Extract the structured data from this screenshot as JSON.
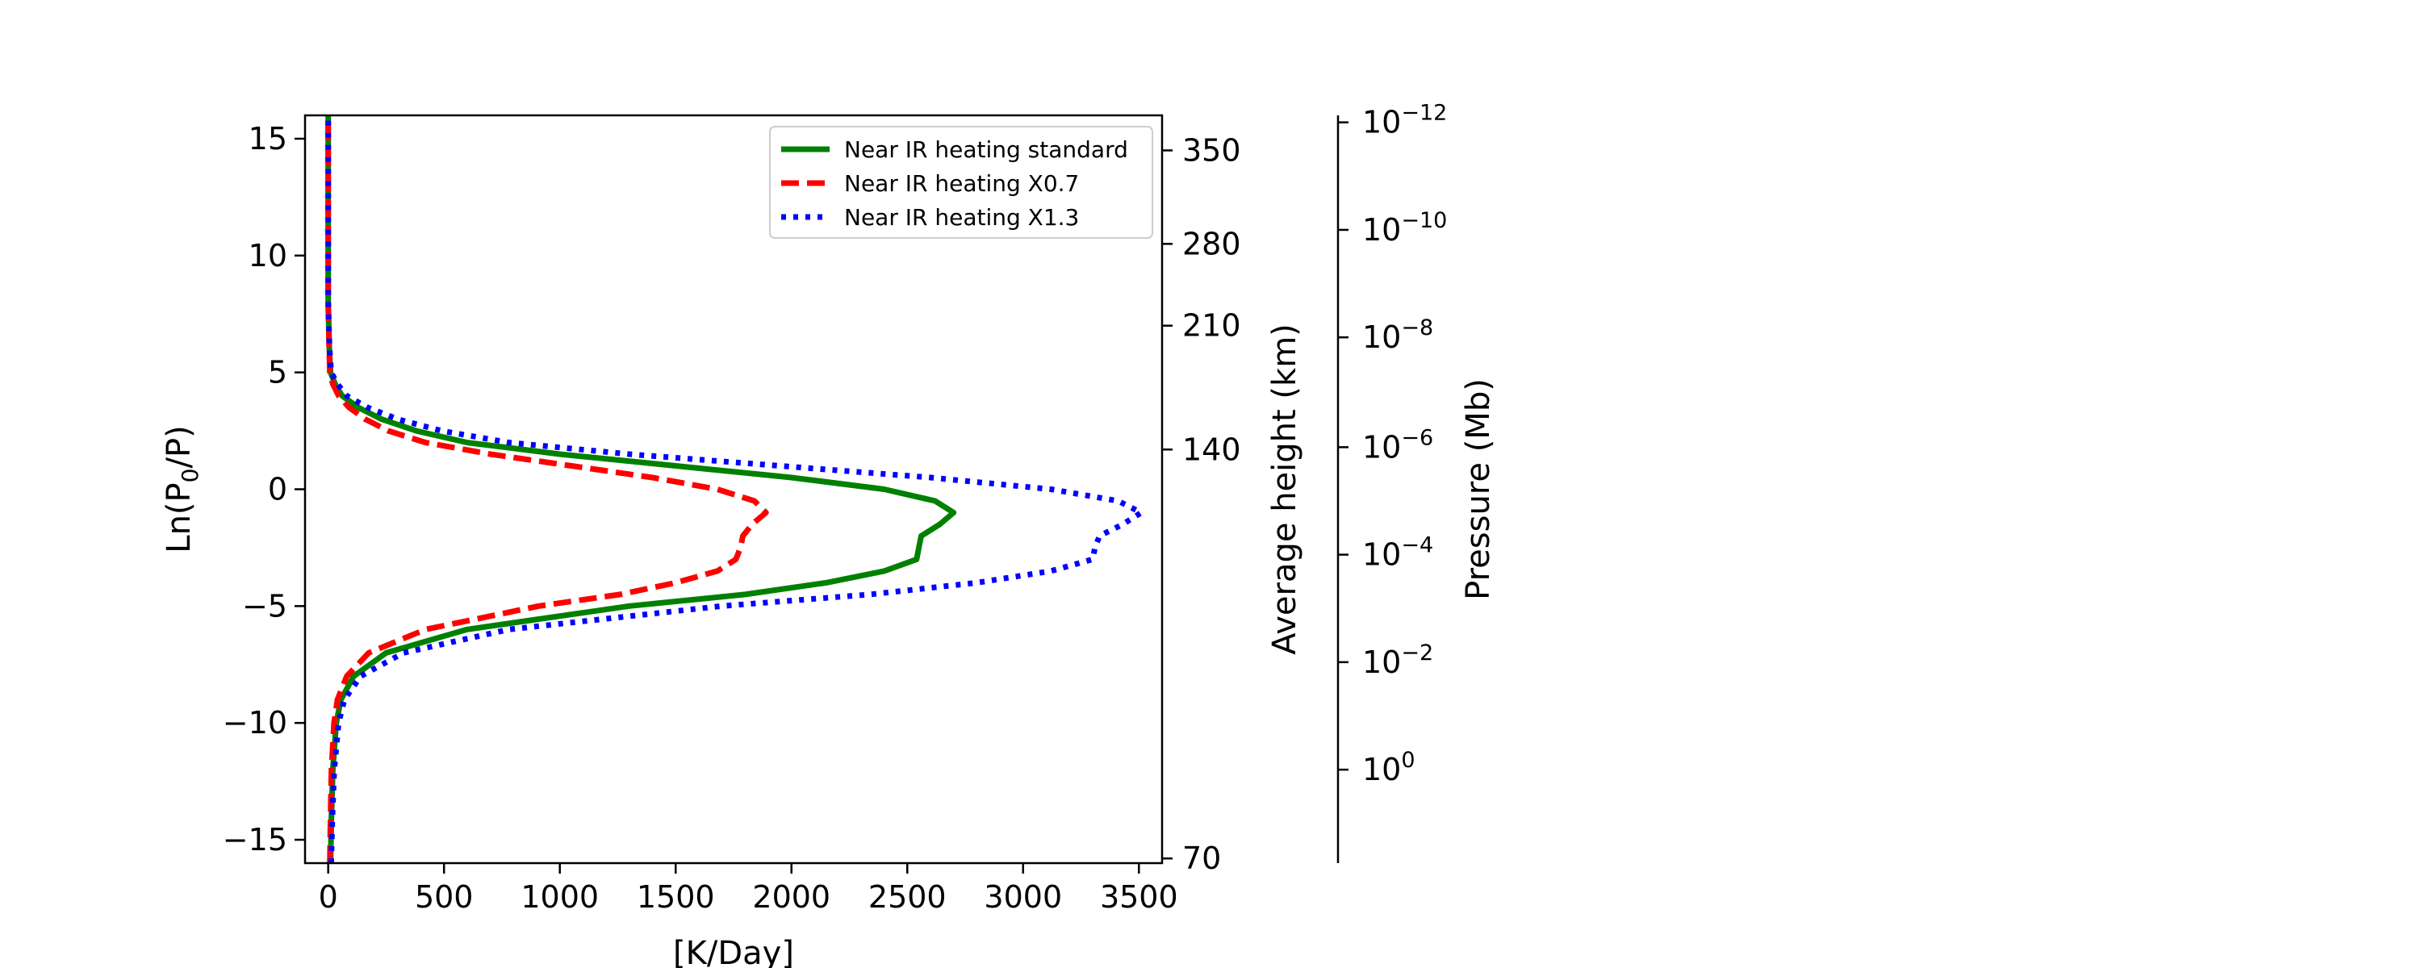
{
  "chart_data": {
    "type": "line",
    "title": "",
    "xlabel": "[K/Day]",
    "ylabel": "Ln(P0/P)",
    "ylabel_parts": {
      "pre": "Ln(P",
      "sub": "0",
      "post": "/P)"
    },
    "xlim": [
      -100,
      3600
    ],
    "ylim": [
      -16,
      16
    ],
    "x_ticks": [
      0,
      500,
      1000,
      1500,
      2000,
      2500,
      3000,
      3500
    ],
    "y_ticks": [
      -15,
      -10,
      -5,
      0,
      5,
      10,
      15
    ],
    "grid": false,
    "legend_position": "top-right",
    "series": [
      {
        "name": "Near IR heating standard",
        "color": "#008000",
        "style": "solid",
        "points": [
          [
            10,
            -16
          ],
          [
            14,
            -14
          ],
          [
            20,
            -12
          ],
          [
            35,
            -10
          ],
          [
            55,
            -9
          ],
          [
            110,
            -8
          ],
          [
            250,
            -7
          ],
          [
            600,
            -6
          ],
          [
            1300,
            -5
          ],
          [
            1800,
            -4.5
          ],
          [
            2150,
            -4
          ],
          [
            2400,
            -3.5
          ],
          [
            2540,
            -3
          ],
          [
            2550,
            -2.5
          ],
          [
            2560,
            -2
          ],
          [
            2640,
            -1.5
          ],
          [
            2700,
            -1
          ],
          [
            2620,
            -0.5
          ],
          [
            2400,
            0
          ],
          [
            2000,
            0.5
          ],
          [
            1500,
            1
          ],
          [
            1000,
            1.5
          ],
          [
            600,
            2
          ],
          [
            380,
            2.5
          ],
          [
            230,
            3
          ],
          [
            130,
            3.5
          ],
          [
            60,
            4
          ],
          [
            30,
            4.5
          ],
          [
            10,
            5
          ],
          [
            5,
            6
          ],
          [
            0,
            8
          ],
          [
            0,
            12
          ],
          [
            0,
            16
          ]
        ]
      },
      {
        "name": "Near IR heating X0.7",
        "color": "#ff0000",
        "style": "dashed",
        "points": [
          [
            7,
            -16
          ],
          [
            10,
            -14
          ],
          [
            14,
            -12
          ],
          [
            25,
            -10
          ],
          [
            40,
            -9
          ],
          [
            80,
            -8
          ],
          [
            175,
            -7
          ],
          [
            420,
            -6
          ],
          [
            910,
            -5
          ],
          [
            1260,
            -4.5
          ],
          [
            1500,
            -4
          ],
          [
            1680,
            -3.5
          ],
          [
            1760,
            -3
          ],
          [
            1780,
            -2.5
          ],
          [
            1790,
            -2
          ],
          [
            1830,
            -1.5
          ],
          [
            1890,
            -1
          ],
          [
            1840,
            -0.5
          ],
          [
            1680,
            0
          ],
          [
            1400,
            0.5
          ],
          [
            1050,
            1
          ],
          [
            700,
            1.5
          ],
          [
            420,
            2
          ],
          [
            260,
            2.5
          ],
          [
            160,
            3
          ],
          [
            90,
            3.5
          ],
          [
            45,
            4
          ],
          [
            20,
            4.5
          ],
          [
            7,
            5
          ],
          [
            4,
            6
          ],
          [
            0,
            8
          ],
          [
            0,
            12
          ],
          [
            0,
            16
          ]
        ]
      },
      {
        "name": "Near IR heating X1.3",
        "color": "#0000ff",
        "style": "dotted",
        "points": [
          [
            13,
            -16
          ],
          [
            18,
            -14
          ],
          [
            26,
            -12
          ],
          [
            45,
            -10
          ],
          [
            70,
            -9
          ],
          [
            140,
            -8
          ],
          [
            325,
            -7
          ],
          [
            780,
            -6
          ],
          [
            1700,
            -5
          ],
          [
            2340,
            -4.5
          ],
          [
            2800,
            -4
          ],
          [
            3120,
            -3.5
          ],
          [
            3300,
            -3
          ],
          [
            3310,
            -2.5
          ],
          [
            3330,
            -2
          ],
          [
            3430,
            -1.5
          ],
          [
            3510,
            -1
          ],
          [
            3410,
            -0.5
          ],
          [
            3120,
            0
          ],
          [
            2600,
            0.5
          ],
          [
            1950,
            1
          ],
          [
            1300,
            1.5
          ],
          [
            780,
            2
          ],
          [
            490,
            2.5
          ],
          [
            300,
            3
          ],
          [
            170,
            3.5
          ],
          [
            80,
            4
          ],
          [
            40,
            4.5
          ],
          [
            13,
            5
          ],
          [
            6,
            6
          ],
          [
            0,
            8
          ],
          [
            0,
            12
          ],
          [
            0,
            16
          ]
        ]
      }
    ],
    "secondary_axes": [
      {
        "label": "Average height (km)",
        "ticks": [
          {
            "label": "350",
            "y": 14.5
          },
          {
            "label": "280",
            "y": 10.5
          },
          {
            "label": "210",
            "y": 7
          },
          {
            "label": "140",
            "y": 1.7
          },
          {
            "label": "70",
            "y": -15.8
          }
        ]
      },
      {
        "label": "Pressure (Mb)",
        "ticks": [
          {
            "base": "10",
            "exp": "−12",
            "y": 15.7
          },
          {
            "base": "10",
            "exp": "−10",
            "y": 11.1
          },
          {
            "base": "10",
            "exp": "−8",
            "y": 6.5
          },
          {
            "base": "10",
            "exp": "−6",
            "y": 1.8
          },
          {
            "base": "10",
            "exp": "−4",
            "y": -2.8
          },
          {
            "base": "10",
            "exp": "−2",
            "y": -7.4
          },
          {
            "base": "10",
            "exp": "0",
            "y": -12.0
          }
        ]
      }
    ]
  }
}
